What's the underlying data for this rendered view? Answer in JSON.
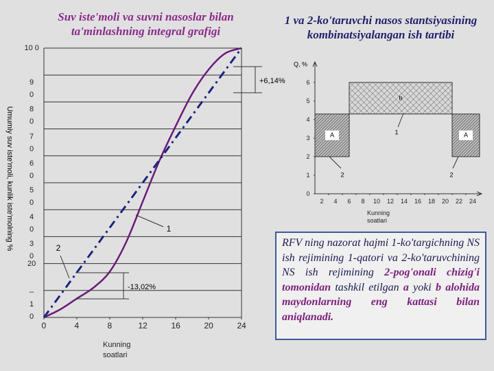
{
  "chart_data": [
    {
      "type": "line",
      "title": "Suv iste'moli va suvni nasoslar bilan ta'minlashning integral grafigi",
      "y_label": "Umumiy suv iste'moli, kunlik iste'molning %",
      "x_label": "Kunning soatlari",
      "xlim": [
        0,
        24
      ],
      "xticks": [
        0,
        4,
        8,
        12,
        16,
        20,
        24
      ],
      "ylim": [
        0,
        100
      ],
      "yticks": [
        {
          "value": 10,
          "label": "–\n1\n0"
        },
        {
          "value": 20,
          "label": "20"
        },
        {
          "value": 30,
          "label": "3\n0"
        },
        {
          "value": 40,
          "label": "4\n0"
        },
        {
          "value": 50,
          "label": "5\n0"
        },
        {
          "value": 60,
          "label": "6\n0"
        },
        {
          "value": 70,
          "label": "7\n0"
        },
        {
          "value": 80,
          "label": "8\n0"
        },
        {
          "value": 90,
          "label": "9\n0"
        },
        {
          "value": 100,
          "label": "10 0"
        }
      ],
      "grid": true,
      "series": [
        {
          "name": "1",
          "color": "#6a1b7a",
          "style": "solid",
          "x": [
            0,
            2,
            4,
            6,
            8,
            10,
            12,
            14,
            16,
            18,
            20,
            22,
            24
          ],
          "values": [
            0,
            3,
            7,
            11,
            17,
            28,
            43,
            58,
            71,
            83,
            92,
            98,
            100
          ]
        },
        {
          "name": "2",
          "color": "#1a237e",
          "style": "dash-dot",
          "x": [
            0,
            24
          ],
          "values": [
            0,
            100
          ]
        }
      ],
      "annotations": [
        "+6,14%",
        "-13,02%"
      ]
    },
    {
      "type": "block",
      "title": "1 va 2-ko'taruvchi nasos stantsiyasining kombinatsiyalangan ish tartibi",
      "y_label": "Q, %",
      "x_label": "Kunning soatlari",
      "xlim": [
        1,
        25
      ],
      "xticks": [
        2,
        4,
        6,
        8,
        10,
        12,
        14,
        16,
        18,
        20,
        22,
        24
      ],
      "ylim": [
        0,
        7
      ],
      "yticks": [
        0,
        1,
        2,
        3,
        4,
        5,
        6
      ],
      "blocks": [
        {
          "name": "A",
          "x": [
            1,
            6
          ],
          "y": [
            2,
            4.3
          ]
        },
        {
          "name": "b",
          "x": [
            6,
            21
          ],
          "y": [
            4.3,
            6
          ]
        },
        {
          "name": "A",
          "x": [
            21,
            25
          ],
          "y": [
            2,
            4.3
          ]
        }
      ],
      "annotations": [
        "1",
        "2",
        "2"
      ]
    }
  ],
  "note": {
    "parts": [
      {
        "text": "RFV ning nazorat hajmi 1-ko'targichning NS ish rejimining 1-qatori va 2-ko'taruvchining NS ish rejimining ",
        "color": "#1a1a4e"
      },
      {
        "text": "2-pog'onali chizig'i tomonidan",
        "color": "#7b1f7b"
      },
      {
        "text": " tashkil etilgan ",
        "color": "#1a1a4e"
      },
      {
        "text": "a",
        "color": "#7b1f7b"
      },
      {
        "text": " yoki ",
        "color": "#1a1a4e"
      },
      {
        "text": "b",
        "color": "#7b1f7b"
      },
      {
        "text": " alohida maydonlarning eng kattasi bilan aniqlanadi.",
        "color": "#7b1f7b"
      }
    ]
  }
}
